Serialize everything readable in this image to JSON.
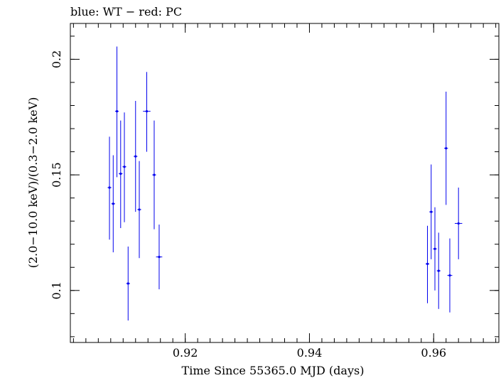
{
  "chart_data": {
    "type": "scatter",
    "title": "blue: WT − red: PC",
    "xlabel": "Time Since 55365.0 MJD (days)",
    "ylabel": "(2.0−10.0 keV)/(0.3−2.0 keV)",
    "xlim": [
      0.9015,
      0.9705
    ],
    "ylim": [
      0.0775,
      0.2155
    ],
    "grid": false,
    "x_ticks": [
      {
        "value": 0.92,
        "label": "0.92"
      },
      {
        "value": 0.94,
        "label": "0.94"
      },
      {
        "value": 0.96,
        "label": "0.96"
      }
    ],
    "y_ticks": [
      {
        "value": 0.1,
        "label": "0.1"
      },
      {
        "value": 0.15,
        "label": "0.15"
      },
      {
        "value": 0.2,
        "label": "0.2"
      }
    ],
    "x_minor_step": 0.002,
    "y_minor_step": 0.01,
    "series": [
      {
        "name": "WT",
        "color": "#0000ee",
        "points": [
          {
            "x": 0.9078,
            "y": 0.1445,
            "yerr_lo": 0.0225,
            "yerr_hi": 0.022,
            "xerr": 0.0003
          },
          {
            "x": 0.9084,
            "y": 0.1375,
            "yerr_lo": 0.021,
            "yerr_hi": 0.021,
            "xerr": 0.0003
          },
          {
            "x": 0.909,
            "y": 0.1775,
            "yerr_lo": 0.0285,
            "yerr_hi": 0.028,
            "xerr": 0.0003
          },
          {
            "x": 0.9096,
            "y": 0.1505,
            "yerr_lo": 0.0235,
            "yerr_hi": 0.023,
            "xerr": 0.0003
          },
          {
            "x": 0.9102,
            "y": 0.1535,
            "yerr_lo": 0.024,
            "yerr_hi": 0.0235,
            "xerr": 0.0003
          },
          {
            "x": 0.9108,
            "y": 0.103,
            "yerr_lo": 0.016,
            "yerr_hi": 0.016,
            "xerr": 0.0003
          },
          {
            "x": 0.912,
            "y": 0.158,
            "yerr_lo": 0.024,
            "yerr_hi": 0.024,
            "xerr": 0.0003
          },
          {
            "x": 0.9126,
            "y": 0.135,
            "yerr_lo": 0.021,
            "yerr_hi": 0.021,
            "xerr": 0.0003
          },
          {
            "x": 0.9138,
            "y": 0.1775,
            "yerr_lo": 0.0175,
            "yerr_hi": 0.017,
            "xerr": 0.0006
          },
          {
            "x": 0.915,
            "y": 0.15,
            "yerr_lo": 0.0235,
            "yerr_hi": 0.0235,
            "xerr": 0.0003
          },
          {
            "x": 0.9158,
            "y": 0.1145,
            "yerr_lo": 0.014,
            "yerr_hi": 0.014,
            "xerr": 0.0005
          },
          {
            "x": 0.959,
            "y": 0.1115,
            "yerr_lo": 0.017,
            "yerr_hi": 0.0165,
            "xerr": 0.0003
          },
          {
            "x": 0.9596,
            "y": 0.134,
            "yerr_lo": 0.0205,
            "yerr_hi": 0.0205,
            "xerr": 0.0003
          },
          {
            "x": 0.9602,
            "y": 0.118,
            "yerr_lo": 0.018,
            "yerr_hi": 0.018,
            "xerr": 0.0003
          },
          {
            "x": 0.9608,
            "y": 0.1085,
            "yerr_lo": 0.0165,
            "yerr_hi": 0.0165,
            "xerr": 0.0003
          },
          {
            "x": 0.962,
            "y": 0.1615,
            "yerr_lo": 0.0245,
            "yerr_hi": 0.0245,
            "xerr": 0.0003
          },
          {
            "x": 0.9626,
            "y": 0.1065,
            "yerr_lo": 0.016,
            "yerr_hi": 0.016,
            "xerr": 0.0004
          },
          {
            "x": 0.964,
            "y": 0.129,
            "yerr_lo": 0.0155,
            "yerr_hi": 0.0155,
            "xerr": 0.0006
          }
        ]
      },
      {
        "name": "PC",
        "color": "#ee0000",
        "points": []
      }
    ]
  }
}
